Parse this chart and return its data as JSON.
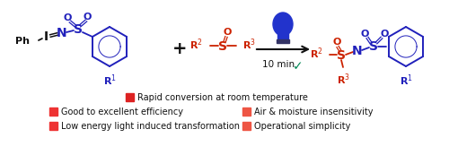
{
  "bg_color": "#ffffff",
  "blue": "#2020bb",
  "red": "#cc2200",
  "black": "#111111",
  "teal": "#008855",
  "bulb_blue": "#2233cc",
  "legend_rows": [
    {
      "left_label": "Rapid conversion at room temperature",
      "left_color": "#dd2222",
      "right_label": null,
      "right_color": null
    },
    {
      "left_label": "Good to excellent efficiency",
      "left_color": "#ee3333",
      "right_label": "Air & moisture insensitivity",
      "right_color": "#ee5544"
    },
    {
      "left_label": "Low energy light induced transformation",
      "left_color": "#ee3333",
      "right_label": "Operational simplicity",
      "right_color": "#ee5544"
    }
  ],
  "arrow_label": "10 min",
  "fig_width": 5.0,
  "fig_height": 1.73,
  "dpi": 100
}
